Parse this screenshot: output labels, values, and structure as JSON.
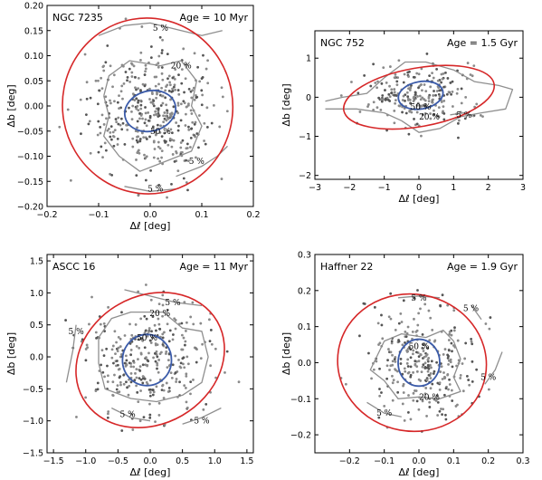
{
  "chart_data": [
    {
      "type": "scatter",
      "cluster": "NGC 7235",
      "age": "Age = 10 Myr",
      "xlabel": "Δℓ [deg]",
      "ylabel": "Δb [deg]",
      "xlim": [
        -0.2,
        0.2
      ],
      "ylim": [
        -0.2,
        0.2
      ],
      "xticks": [
        -0.2,
        -0.1,
        0.0,
        0.1,
        0.2
      ],
      "xtick_labels": [
        "−0.2",
        "−0.1",
        "0.0",
        "0.1",
        "0.2"
      ],
      "yticks": [
        -0.2,
        -0.15,
        -0.1,
        -0.05,
        0.0,
        0.05,
        0.1,
        0.15,
        0.2
      ],
      "ytick_labels": [
        "−0.20",
        "−0.15",
        "−0.10",
        "−0.05",
        "0.00",
        "0.05",
        "0.10",
        "0.15",
        "0.20"
      ],
      "inner_ellipse": {
        "cx": 0.0,
        "cy": -0.01,
        "rx": 0.05,
        "ry": 0.04,
        "angle": -15
      },
      "outer_ellipse": {
        "cx": -0.005,
        "cy": 0.0,
        "rx": 0.165,
        "ry": 0.175,
        "angle": -10
      },
      "contours": [
        {
          "label": "5 %",
          "points": [
            [
              -0.1,
              0.14
            ],
            [
              -0.05,
              0.16
            ],
            [
              0.0,
              0.165
            ],
            [
              0.06,
              0.15
            ],
            [
              0.1,
              0.14
            ],
            [
              0.14,
              0.15
            ]
          ],
          "label_at": [
            0.02,
            0.155
          ]
        },
        {
          "label": "20 %",
          "points": [
            [
              -0.09,
              0.02
            ],
            [
              -0.08,
              0.06
            ],
            [
              -0.04,
              0.09
            ],
            [
              0.02,
              0.08
            ],
            [
              0.06,
              0.09
            ],
            [
              0.09,
              0.05
            ],
            [
              0.08,
              0.0
            ],
            [
              0.1,
              -0.04
            ],
            [
              0.08,
              -0.09
            ],
            [
              0.03,
              -0.11
            ],
            [
              -0.02,
              -0.13
            ],
            [
              -0.06,
              -0.1
            ],
            [
              -0.09,
              -0.06
            ],
            [
              -0.08,
              -0.02
            ],
            [
              -0.09,
              0.02
            ]
          ],
          "label_at": [
            0.06,
            0.08
          ]
        },
        {
          "label": "5 %",
          "points": [
            [
              0.05,
              -0.14
            ],
            [
              0.1,
              -0.12
            ],
            [
              0.13,
              -0.1
            ],
            [
              0.15,
              -0.08
            ]
          ],
          "label_at": [
            0.09,
            -0.11
          ]
        },
        {
          "label": "5 %",
          "points": [
            [
              -0.05,
              -0.16
            ],
            [
              0.0,
              -0.17
            ],
            [
              0.05,
              -0.165
            ]
          ],
          "label_at": [
            0.01,
            -0.165
          ]
        }
      ],
      "inner_label": {
        "text": "50 %",
        "at": [
          0.02,
          -0.05
        ]
      },
      "n_points": 430,
      "spread": [
        0.07,
        0.07
      ]
    },
    {
      "type": "scatter",
      "cluster": "NGC 752",
      "age": "Age = 1.5 Gyr",
      "xlabel": "Δℓ [deg]",
      "ylabel": "Δb [deg]",
      "xlim": [
        -3,
        3
      ],
      "ylim": [
        -2.1,
        1.7
      ],
      "xticks": [
        -3,
        -2,
        -1,
        0,
        1,
        2,
        3
      ],
      "xtick_labels": [
        "−3",
        "−2",
        "−1",
        "0",
        "1",
        "2",
        "3"
      ],
      "yticks": [
        -2,
        -1,
        0,
        1
      ],
      "ytick_labels": [
        "−2",
        "−1",
        "0",
        "1"
      ],
      "inner_ellipse": {
        "cx": 0.05,
        "cy": 0.05,
        "rx": 0.65,
        "ry": 0.35,
        "angle": -10
      },
      "outer_ellipse": {
        "cx": 0.0,
        "cy": 0.0,
        "rx": 2.2,
        "ry": 0.75,
        "angle": -10
      },
      "contours": [
        {
          "label": "20 %",
          "points": [
            [
              -2.7,
              -0.1
            ],
            [
              -2.2,
              0.0
            ],
            [
              -1.5,
              0.1
            ],
            [
              -1.0,
              0.5
            ],
            [
              -0.4,
              0.9
            ],
            [
              0.2,
              0.9
            ],
            [
              1.0,
              0.7
            ],
            [
              1.6,
              0.4
            ],
            [
              2.3,
              0.3
            ],
            [
              2.7,
              0.2
            ],
            [
              2.5,
              -0.3
            ],
            [
              1.8,
              -0.4
            ],
            [
              1.2,
              -0.5
            ],
            [
              0.6,
              -0.8
            ],
            [
              0.0,
              -0.9
            ],
            [
              -0.5,
              -0.6
            ],
            [
              -1.0,
              -0.4
            ],
            [
              -1.8,
              -0.3
            ],
            [
              -2.7,
              -0.3
            ]
          ],
          "label_at": [
            0.3,
            -0.5
          ]
        },
        {
          "label": "5 %",
          "points": [
            [
              0.9,
              -0.45
            ],
            [
              1.3,
              -0.4
            ],
            [
              1.6,
              -0.5
            ]
          ],
          "label_at": [
            1.3,
            -0.45
          ]
        }
      ],
      "inner_label": {
        "text": "50 %",
        "at": [
          0.05,
          -0.25
        ]
      },
      "n_points": 240,
      "spread": [
        0.9,
        0.45
      ]
    },
    {
      "type": "scatter",
      "cluster": "ASCC 16",
      "age": "Age = 11 Myr",
      "xlabel": "Δℓ [deg]",
      "ylabel": "Δb [deg]",
      "xlim": [
        -1.6,
        1.6
      ],
      "ylim": [
        -1.5,
        1.6
      ],
      "xticks": [
        -1.5,
        -1.0,
        -0.5,
        0.0,
        0.5,
        1.0,
        1.5
      ],
      "xtick_labels": [
        "−1.5",
        "−1.0",
        "−0.5",
        "0.0",
        "0.5",
        "1.0",
        "1.5"
      ],
      "yticks": [
        -1.5,
        -1.0,
        -0.5,
        0.0,
        0.5,
        1.0,
        1.5
      ],
      "ytick_labels": [
        "−1.5",
        "−1.0",
        "−0.5",
        "0.0",
        "0.5",
        "1.0",
        "1.5"
      ],
      "inner_ellipse": {
        "cx": -0.05,
        "cy": -0.05,
        "rx": 0.38,
        "ry": 0.4,
        "angle": 0
      },
      "outer_ellipse": {
        "cx": 0.0,
        "cy": -0.05,
        "rx": 1.2,
        "ry": 1.0,
        "angle": -30
      },
      "contours": [
        {
          "label": "5 %",
          "points": [
            [
              -1.15,
              0.5
            ],
            [
              -1.2,
              0.1
            ],
            [
              -1.3,
              -0.4
            ]
          ],
          "label_at": [
            -1.15,
            0.4
          ]
        },
        {
          "label": "5 %",
          "points": [
            [
              -0.4,
              1.05
            ],
            [
              0.0,
              0.95
            ],
            [
              0.4,
              0.85
            ],
            [
              0.8,
              0.8
            ]
          ],
          "label_at": [
            0.35,
            0.85
          ]
        },
        {
          "label": "20 %",
          "points": [
            [
              -0.8,
              0.3
            ],
            [
              -0.6,
              0.6
            ],
            [
              -0.3,
              0.7
            ],
            [
              0.2,
              0.7
            ],
            [
              0.5,
              0.45
            ],
            [
              0.8,
              0.4
            ],
            [
              0.9,
              0.0
            ],
            [
              0.8,
              -0.4
            ],
            [
              0.5,
              -0.6
            ],
            [
              0.1,
              -0.7
            ],
            [
              -0.3,
              -0.65
            ],
            [
              -0.7,
              -0.5
            ],
            [
              -0.8,
              -0.1
            ],
            [
              -0.8,
              0.3
            ]
          ],
          "label_at": [
            0.15,
            0.68
          ]
        },
        {
          "label": "5 %",
          "points": [
            [
              -0.6,
              -0.8
            ],
            [
              -0.3,
              -0.95
            ],
            [
              0.0,
              -1.0
            ]
          ],
          "label_at": [
            -0.35,
            -0.9
          ]
        },
        {
          "label": "5 %",
          "points": [
            [
              0.5,
              -1.05
            ],
            [
              0.8,
              -0.95
            ],
            [
              1.1,
              -0.8
            ]
          ],
          "label_at": [
            0.8,
            -1.0
          ]
        }
      ],
      "inner_label": {
        "text": "50 %",
        "at": [
          -0.05,
          0.3
        ]
      },
      "n_points": 330,
      "spread": [
        0.55,
        0.5
      ]
    },
    {
      "type": "scatter",
      "cluster": "Haffner 22",
      "age": "Age = 1.9 Gyr",
      "xlabel": "Δℓ [deg]",
      "ylabel": "Δb [deg]",
      "xlim": [
        -0.3,
        0.3
      ],
      "ylim": [
        -0.25,
        0.3
      ],
      "xticks": [
        -0.2,
        -0.1,
        0.0,
        0.1,
        0.2,
        0.3
      ],
      "xtick_labels": [
        "−0.2",
        "−0.1",
        "0.0",
        "0.1",
        "0.2",
        "0.3"
      ],
      "yticks": [
        -0.2,
        -0.1,
        0.0,
        0.1,
        0.2,
        0.3
      ],
      "ytick_labels": [
        "−0.2",
        "−0.1",
        "0.0",
        "0.1",
        "0.2",
        "0.3"
      ],
      "inner_ellipse": {
        "cx": 0.0,
        "cy": 0.0,
        "rx": 0.06,
        "ry": 0.065,
        "angle": 0
      },
      "outer_ellipse": {
        "cx": -0.02,
        "cy": 0.0,
        "rx": 0.215,
        "ry": 0.19,
        "angle": 10
      },
      "contours": [
        {
          "label": "5 %",
          "points": [
            [
              -0.06,
              0.18
            ],
            [
              0.0,
              0.185
            ],
            [
              0.06,
              0.18
            ]
          ],
          "label_at": [
            0.0,
            0.18
          ]
        },
        {
          "label": "5 %",
          "points": [
            [
              0.15,
              0.16
            ],
            [
              0.18,
              0.12
            ]
          ],
          "label_at": [
            0.15,
            0.15
          ]
        },
        {
          "label": "20 %",
          "points": [
            [
              -0.12,
              0.02
            ],
            [
              -0.1,
              0.06
            ],
            [
              -0.05,
              0.08
            ],
            [
              0.02,
              0.07
            ],
            [
              0.07,
              0.09
            ],
            [
              0.1,
              0.06
            ],
            [
              0.12,
              0.01
            ],
            [
              0.1,
              -0.04
            ],
            [
              0.12,
              -0.08
            ],
            [
              0.06,
              -0.1
            ],
            [
              0.0,
              -0.095
            ],
            [
              -0.06,
              -0.1
            ],
            [
              -0.1,
              -0.05
            ],
            [
              -0.14,
              -0.02
            ],
            [
              -0.12,
              0.02
            ]
          ],
          "label_at": [
            0.03,
            -0.095
          ]
        },
        {
          "label": "5 %",
          "points": [
            [
              0.19,
              -0.06
            ],
            [
              0.22,
              -0.02
            ],
            [
              0.24,
              0.03
            ]
          ],
          "label_at": [
            0.2,
            -0.04
          ]
        },
        {
          "label": "5 %",
          "points": [
            [
              -0.15,
              -0.11
            ],
            [
              -0.1,
              -0.14
            ],
            [
              -0.05,
              -0.15
            ]
          ],
          "label_at": [
            -0.1,
            -0.14
          ]
        }
      ],
      "inner_label": {
        "text": "50 %",
        "at": [
          0.0,
          0.045
        ]
      },
      "n_points": 300,
      "spread": [
        0.09,
        0.08
      ]
    }
  ]
}
